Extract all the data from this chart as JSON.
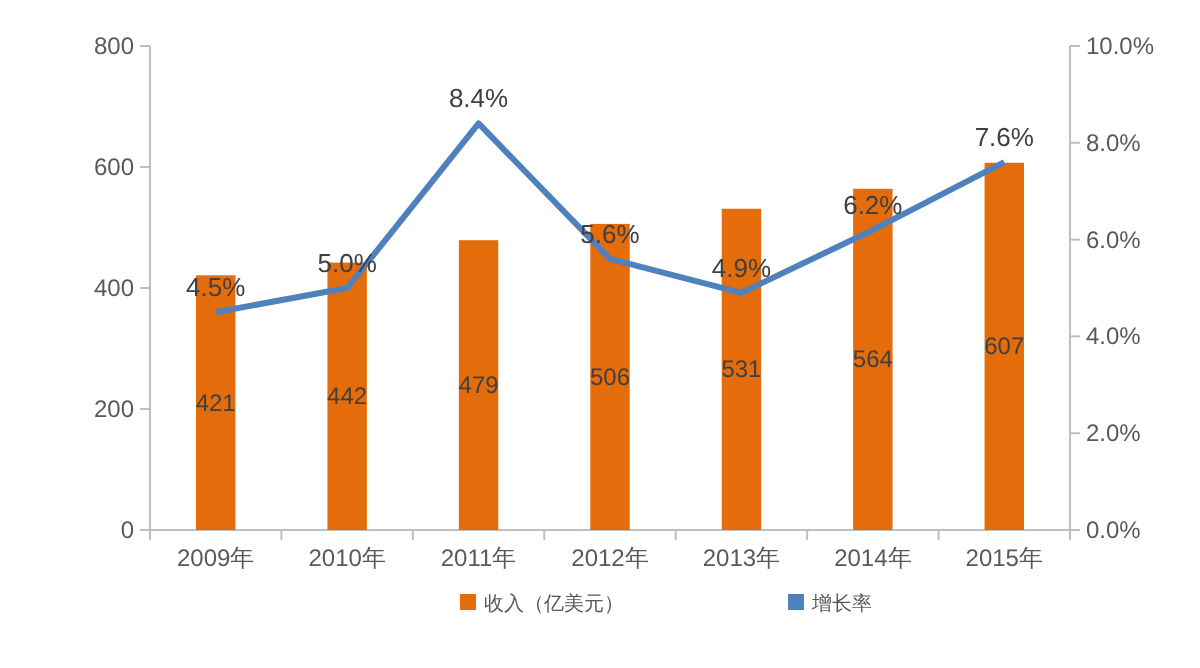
{
  "chart_data": {
    "type": "bar",
    "categories": [
      "2009年",
      "2010年",
      "2011年",
      "2012年",
      "2013年",
      "2014年",
      "2015年"
    ],
    "series": [
      {
        "name": "收入（亿美元）",
        "color": "#e46c0a",
        "values": [
          421,
          442,
          479,
          506,
          531,
          564,
          607
        ],
        "data_labels": true
      },
      {
        "name": "增长率",
        "type": "line",
        "axis": "y2",
        "color": "#4f81bd",
        "values": [
          4.5,
          5.0,
          8.4,
          5.6,
          4.9,
          6.2,
          7.6
        ],
        "value_labels": [
          "4.5%",
          "5.0%",
          "8.4%",
          "5.6%",
          "4.9%",
          "6.2%",
          "7.6%"
        ]
      }
    ],
    "ylim": [
      0,
      800
    ],
    "yticks": [
      0,
      200,
      400,
      600,
      800
    ],
    "y2lim": [
      0,
      10
    ],
    "y2ticks": [
      {
        "value": 0,
        "label": "0.0%"
      },
      {
        "value": 2,
        "label": "2.0%"
      },
      {
        "value": 4,
        "label": "4.0%"
      },
      {
        "value": 6,
        "label": "6.0%"
      },
      {
        "value": 8,
        "label": "8.0%"
      },
      {
        "value": 10,
        "label": "10.0%"
      }
    ],
    "grid": false,
    "legend": "bottom",
    "marker": "none"
  }
}
